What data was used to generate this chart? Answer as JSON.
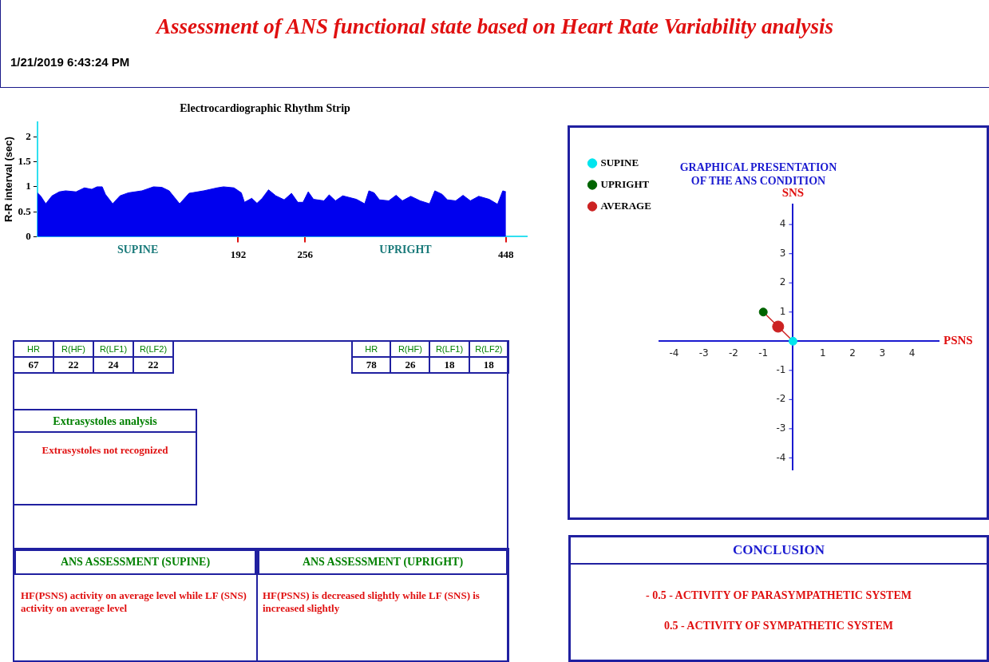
{
  "chart_data": [
    {
      "type": "other",
      "title": "Assessment of ANS functional state based on Heart Rate Variability analysis",
      "subtitle": "1/21/2019 6:43:24 PM"
    },
    {
      "type": "area",
      "title": "Electrocardiographic Rhythm Strip",
      "ylabel": "R-R interval (sec)",
      "xlim": [
        0,
        468
      ],
      "ylim": [
        0,
        2.3
      ],
      "xticks": [
        192,
        256,
        448
      ],
      "yticks": [
        0,
        0.5,
        1,
        1.5,
        2
      ],
      "grid": false,
      "annotations": [
        {
          "text": "SUPINE",
          "x": 96,
          "y": 0
        },
        {
          "text": "UPRIGHT",
          "x": 352,
          "y": 0
        }
      ],
      "series": [
        {
          "color": "#0000ee",
          "x": [
            0,
            3,
            8,
            14,
            21,
            27,
            37,
            45,
            52,
            57,
            62,
            65,
            72,
            79,
            87,
            100,
            111,
            119,
            126,
            136,
            145,
            159,
            172,
            178,
            188,
            195,
            198,
            205,
            210,
            215,
            221,
            228,
            236,
            243,
            249,
            254,
            259,
            264,
            274,
            279,
            285,
            292,
            305,
            313,
            317,
            322,
            327,
            336,
            343,
            349,
            357,
            366,
            375,
            380,
            387,
            392,
            400,
            407,
            414,
            422,
            432,
            440,
            445,
            448
          ],
          "values": [
            0.88,
            0.82,
            0.66,
            0.82,
            0.9,
            0.92,
            0.9,
            0.98,
            0.95,
            1.0,
            1.0,
            0.85,
            0.66,
            0.82,
            0.88,
            0.92,
            1.0,
            0.99,
            0.92,
            0.66,
            0.87,
            0.92,
            0.98,
            1.0,
            0.98,
            0.88,
            0.69,
            0.77,
            0.67,
            0.77,
            0.94,
            0.82,
            0.74,
            0.87,
            0.69,
            0.69,
            0.9,
            0.75,
            0.72,
            0.84,
            0.72,
            0.82,
            0.75,
            0.66,
            0.92,
            0.88,
            0.74,
            0.72,
            0.83,
            0.72,
            0.81,
            0.72,
            0.66,
            0.92,
            0.85,
            0.74,
            0.72,
            0.83,
            0.72,
            0.81,
            0.75,
            0.65,
            0.92,
            0.9
          ]
        }
      ]
    },
    {
      "type": "scatter",
      "title": "GRAPHICAL PRESENTATION\nOF THE ANS CONDITION",
      "xlabel": "PSNS",
      "ylabel": "SNS",
      "xlim": [
        -4.5,
        4.9
      ],
      "ylim": [
        -4.4,
        4.7
      ],
      "xticks": [
        -4,
        -3,
        -2,
        -1,
        1,
        2,
        3,
        4
      ],
      "yticks": [
        -4,
        -3,
        -2,
        -1,
        1,
        2,
        3,
        4
      ],
      "grid": false,
      "legend": "left",
      "series": [
        {
          "type": "line",
          "color": "#cc2222",
          "x": [
            -1,
            0
          ],
          "values": [
            1,
            0
          ],
          "marker": "none"
        },
        {
          "name": "SUPINE",
          "color": "#00e5ee",
          "x": [
            0
          ],
          "values": [
            0
          ],
          "marker": "circle"
        },
        {
          "name": "UPRIGHT",
          "color": "#006400",
          "x": [
            -1
          ],
          "values": [
            1
          ],
          "marker": "circle"
        },
        {
          "name": "AVERAGE",
          "color": "#cc2222",
          "x": [
            -0.5
          ],
          "values": [
            0.5
          ],
          "marker": "circle"
        }
      ]
    },
    {
      "type": "other",
      "categories": [
        "HR",
        "R(HF)",
        "R(LF1)",
        "R(LF2)"
      ],
      "values": [
        67,
        22,
        24,
        22
      ],
      "data_labels": true
    },
    {
      "type": "other",
      "categories": [
        "HR",
        "R(HF)",
        "R(LF1)",
        "R(LF2)"
      ],
      "values": [
        78,
        26,
        18,
        18
      ],
      "data_labels": true
    },
    {
      "type": "other",
      "title": "Extrasystoles analysis",
      "annotations": [
        "Extrasystoles not recognized"
      ]
    },
    {
      "type": "other",
      "title": "ANS ASSESSMENT (SUPINE)",
      "annotations": [
        "HF(PSNS) activity on average level while LF (SNS) activity on average level"
      ]
    },
    {
      "type": "other",
      "title": "ANS ASSESSMENT (UPRIGHT)",
      "annotations": [
        "HF(PSNS) is decreased slightly while LF (SNS) is increased slightly"
      ]
    },
    {
      "type": "other",
      "title": "CONCLUSION",
      "annotations": [
        "- 0.5 - ACTIVITY OF PARASYMPATHETIC SYSTEM",
        "0.5 - ACTIVITY OF SYMPATHETIC SYSTEM"
      ]
    }
  ]
}
